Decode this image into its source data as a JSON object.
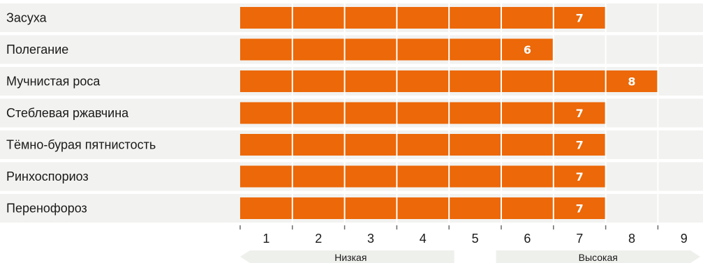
{
  "chart_data": {
    "type": "bar",
    "orientation": "horizontal",
    "categories": [
      "Засуха",
      "Полегание",
      "Мучнистая роса",
      "Стеблевая ржавчина",
      "Тёмно-бурая пятнистость",
      "Ринхоспориоз",
      "Перенофороз"
    ],
    "values": [
      7,
      6,
      8,
      7,
      7,
      7,
      7
    ],
    "xlim": [
      0,
      9
    ],
    "x_ticks": [
      "1",
      "2",
      "3",
      "4",
      "5",
      "6",
      "7",
      "8",
      "9"
    ],
    "scale_labels": {
      "low": "Низкая",
      "high": "Высокая"
    },
    "grid": true
  },
  "colors": {
    "bar": "#ec6808",
    "row_band": "#f2f2f0",
    "grid_line": "#ffffff",
    "scale_arrow": "#eef0ec",
    "tick_mark": "#6b6b6b"
  }
}
